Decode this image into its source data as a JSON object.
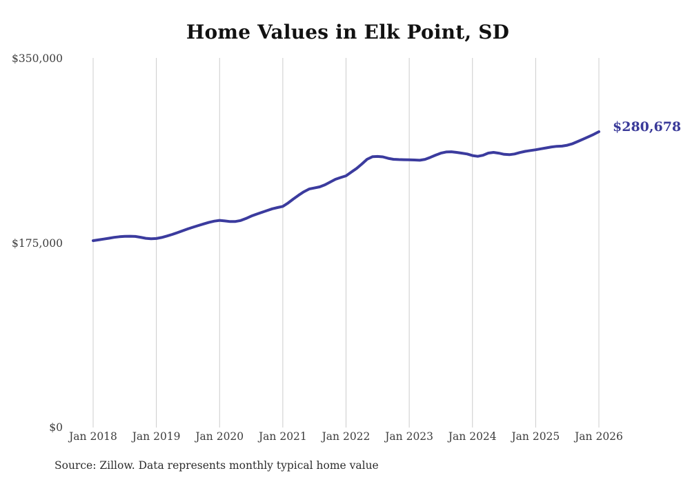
{
  "header": {
    "title": "Home Values in Elk Point, SD"
  },
  "footer": {
    "source": "Source: Zillow. Data represents monthly typical home value"
  },
  "colors": {
    "line": "#3b3b9e",
    "end_label_text": "#3a3a99",
    "grid": "#cccccc",
    "title_text": "#111111",
    "tick_text": "#3d3d3d",
    "source_text": "#2d2d2d",
    "background": "#ffffff"
  },
  "chart_data": {
    "type": "line",
    "title": "Home Values in Elk Point, SD",
    "xlabel": "",
    "ylabel": "",
    "ylim": [
      0,
      350000
    ],
    "grid": "vertical-only",
    "legend": "none",
    "x": [
      "2018-01",
      "2018-02",
      "2018-03",
      "2018-04",
      "2018-05",
      "2018-06",
      "2018-07",
      "2018-08",
      "2018-09",
      "2018-10",
      "2018-11",
      "2018-12",
      "2019-01",
      "2019-02",
      "2019-03",
      "2019-04",
      "2019-05",
      "2019-06",
      "2019-07",
      "2019-08",
      "2019-09",
      "2019-10",
      "2019-11",
      "2019-12",
      "2020-01",
      "2020-02",
      "2020-03",
      "2020-04",
      "2020-05",
      "2020-06",
      "2020-07",
      "2020-08",
      "2020-09",
      "2020-10",
      "2020-11",
      "2020-12",
      "2021-01",
      "2021-02",
      "2021-03",
      "2021-04",
      "2021-05",
      "2021-06",
      "2021-07",
      "2021-08",
      "2021-09",
      "2021-10",
      "2021-11",
      "2021-12",
      "2022-01",
      "2022-02",
      "2022-03",
      "2022-04",
      "2022-05",
      "2022-06",
      "2022-07",
      "2022-08",
      "2022-09",
      "2022-10",
      "2022-11",
      "2022-12",
      "2023-01",
      "2023-02",
      "2023-03",
      "2023-04",
      "2023-05",
      "2023-06",
      "2023-07",
      "2023-08",
      "2023-09",
      "2023-10",
      "2023-11",
      "2023-12",
      "2024-01",
      "2024-02",
      "2024-03",
      "2024-04",
      "2024-05",
      "2024-06",
      "2024-07",
      "2024-08",
      "2024-09",
      "2024-10",
      "2024-11",
      "2024-12",
      "2025-01",
      "2025-02",
      "2025-03",
      "2025-04",
      "2025-05",
      "2025-06",
      "2025-07",
      "2025-08",
      "2025-09",
      "2025-10",
      "2025-11",
      "2025-12",
      "2026-01"
    ],
    "series": [
      {
        "name": "Monthly typical home value",
        "color": "#3b3b9e",
        "end_label": "$280,678",
        "end_value": 280678,
        "values": [
          177300,
          178000,
          178800,
          179600,
          180400,
          181000,
          181400,
          181500,
          181300,
          180500,
          179500,
          179100,
          179300,
          180300,
          181700,
          183200,
          184900,
          186700,
          188500,
          190100,
          191700,
          193200,
          194700,
          195800,
          196500,
          196000,
          195400,
          195500,
          196400,
          198300,
          200600,
          202400,
          204100,
          205800,
          207500,
          208700,
          209800,
          213000,
          216800,
          220400,
          223700,
          226300,
          227300,
          228300,
          230300,
          232900,
          235500,
          237200,
          238800,
          242300,
          245800,
          250000,
          254500,
          256900,
          257200,
          256800,
          255400,
          254500,
          254200,
          254100,
          254000,
          253800,
          253600,
          254400,
          256300,
          258400,
          260300,
          261400,
          261600,
          261000,
          260300,
          259500,
          258000,
          257300,
          258300,
          260400,
          261000,
          260300,
          259200,
          258900,
          259500,
          260900,
          262000,
          262800,
          263500,
          264400,
          265300,
          266200,
          266800,
          267000,
          267800,
          269300,
          271400,
          273600,
          275800,
          278100,
          280678
        ]
      }
    ],
    "xticks": [
      {
        "index": 0,
        "label": "Jan 2018"
      },
      {
        "index": 12,
        "label": "Jan 2019"
      },
      {
        "index": 24,
        "label": "Jan 2020"
      },
      {
        "index": 36,
        "label": "Jan 2021"
      },
      {
        "index": 48,
        "label": "Jan 2022"
      },
      {
        "index": 60,
        "label": "Jan 2023"
      },
      {
        "index": 72,
        "label": "Jan 2024"
      },
      {
        "index": 84,
        "label": "Jan 2025"
      },
      {
        "index": 96,
        "label": "Jan 2026"
      }
    ],
    "yticks": [
      {
        "value": 0,
        "label": "$0"
      },
      {
        "value": 175000,
        "label": "$175,000"
      },
      {
        "value": 350000,
        "label": "$350,000"
      }
    ],
    "source": "Source: Zillow. Data represents monthly typical home value"
  }
}
